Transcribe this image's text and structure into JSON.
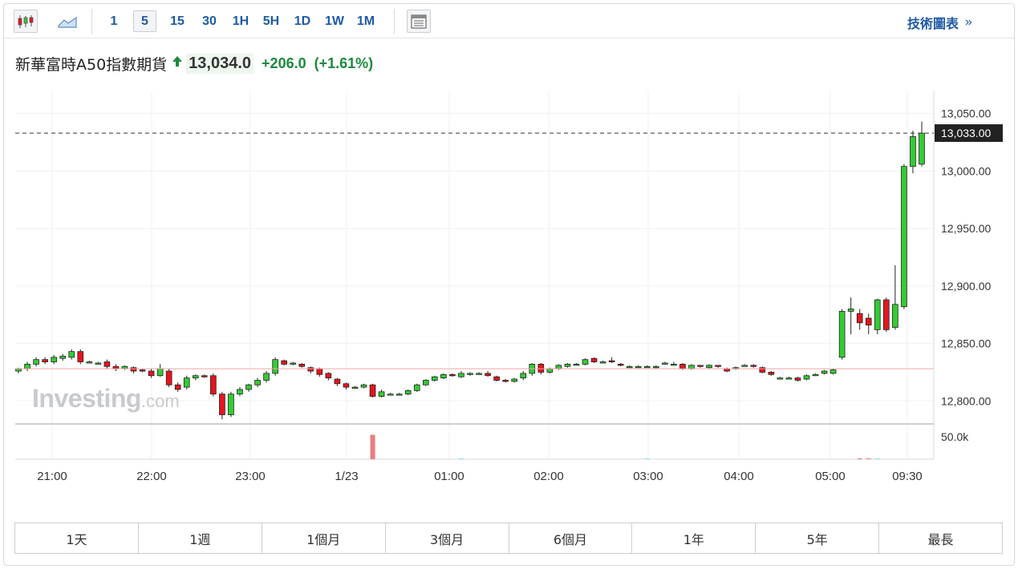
{
  "toolbar": {
    "chart_type_icons": [
      "candlestick-icon",
      "area-chart-icon"
    ],
    "intervals": [
      "1",
      "5",
      "15",
      "30",
      "1H",
      "5H",
      "1D",
      "1W",
      "1M"
    ],
    "active_interval": "5",
    "technical_link": "技術圖表",
    "technical_chevron": "»"
  },
  "instrument": {
    "name": "新華富時A50指數期貨",
    "price": "13,034.0",
    "change": "+206.0",
    "change_pct": "(+1.61%)",
    "direction": "up"
  },
  "watermark": {
    "brand": "Investing",
    "suffix": ".com"
  },
  "colors": {
    "up": "#33cc33",
    "down": "#e6141e",
    "accent_text": "#1f5aa5",
    "positive_text": "#1c8a3c",
    "prev_close_line": "#f3a4a4",
    "last_price_tag": "#222222"
  },
  "periods": [
    "1天",
    "1週",
    "1個月",
    "3個月",
    "6個月",
    "1年",
    "5年",
    "最長"
  ],
  "chart_data": {
    "type": "candlestick",
    "title": "",
    "y_ticks": [
      "13,050.00",
      "13,000.00",
      "12,950.00",
      "12,900.00",
      "12,850.00",
      "12,800.00"
    ],
    "y_tick_values": [
      13050,
      13000,
      12950,
      12900,
      12850,
      12800
    ],
    "ylim": [
      12780,
      13070
    ],
    "x_ticks": [
      "21:00",
      "22:00",
      "23:00",
      "1/23",
      "01:00",
      "02:00",
      "03:00",
      "04:00",
      "05:00",
      "09:30"
    ],
    "last_price_label": "13,033.00",
    "last_price": 13033,
    "previous_close": 12828,
    "volume_tick": "50.0k",
    "volume_ylim": [
      0,
      80000
    ],
    "grid": true,
    "candles": [
      [
        12826,
        12828,
        12824,
        12829
      ],
      [
        12828,
        12832,
        12826,
        12834
      ],
      [
        12832,
        12836,
        12830,
        12838
      ],
      [
        12836,
        12834,
        12832,
        12838
      ],
      [
        12834,
        12838,
        12832,
        12840
      ],
      [
        12837,
        12839,
        12835,
        12841
      ],
      [
        12838,
        12843,
        12836,
        12845
      ],
      [
        12843,
        12834,
        12832,
        12845
      ],
      [
        12834,
        12834,
        12833,
        12835
      ],
      [
        12833,
        12833,
        12832,
        12834
      ],
      [
        12834,
        12830,
        12828,
        12836
      ],
      [
        12830,
        12828,
        12826,
        12832
      ],
      [
        12828,
        12830,
        12827,
        12831
      ],
      [
        12829,
        12826,
        12824,
        12830
      ],
      [
        12827,
        12826,
        12825,
        12828
      ],
      [
        12826,
        12822,
        12820,
        12828
      ],
      [
        12822,
        12828,
        12821,
        12832
      ],
      [
        12826,
        12814,
        12812,
        12828
      ],
      [
        12814,
        12810,
        12808,
        12816
      ],
      [
        12812,
        12820,
        12810,
        12822
      ],
      [
        12820,
        12822,
        12818,
        12823
      ],
      [
        12822,
        12821,
        12820,
        12823
      ],
      [
        12822,
        12806,
        12804,
        12824
      ],
      [
        12806,
        12788,
        12784,
        12808
      ],
      [
        12788,
        12806,
        12786,
        12808
      ],
      [
        12806,
        12810,
        12804,
        12812
      ],
      [
        12810,
        12814,
        12808,
        12815
      ],
      [
        12814,
        12818,
        12812,
        12820
      ],
      [
        12818,
        12824,
        12816,
        12826
      ],
      [
        12824,
        12836,
        12822,
        12838
      ],
      [
        12835,
        12832,
        12831,
        12836
      ],
      [
        12832,
        12833,
        12831,
        12834
      ],
      [
        12832,
        12830,
        12829,
        12833
      ],
      [
        12829,
        12826,
        12824,
        12830
      ],
      [
        12828,
        12823,
        12821,
        12829
      ],
      [
        12824,
        12820,
        12818,
        12825
      ],
      [
        12819,
        12815,
        12813,
        12820
      ],
      [
        12815,
        12812,
        12810,
        12816
      ],
      [
        12812,
        12812,
        12811,
        12813
      ],
      [
        12812,
        12814,
        12811,
        12815
      ],
      [
        12814,
        12804,
        12803,
        12815
      ],
      [
        12804,
        12808,
        12803,
        12810
      ],
      [
        12806,
        12806,
        12805,
        12807
      ],
      [
        12806,
        12806,
        12805,
        12807
      ],
      [
        12806,
        12809,
        12805,
        12810
      ],
      [
        12809,
        12814,
        12808,
        12815
      ],
      [
        12814,
        12818,
        12813,
        12819
      ],
      [
        12818,
        12821,
        12817,
        12822
      ],
      [
        12820,
        12823,
        12819,
        12824
      ],
      [
        12823,
        12822,
        12821,
        12824
      ],
      [
        12821,
        12824,
        12820,
        12826
      ],
      [
        12823,
        12824,
        12822,
        12825
      ],
      [
        12824,
        12824,
        12823,
        12825
      ],
      [
        12824,
        12822,
        12821,
        12826
      ],
      [
        12821,
        12818,
        12817,
        12822
      ],
      [
        12818,
        12817,
        12816,
        12819
      ],
      [
        12817,
        12819,
        12816,
        12820
      ],
      [
        12820,
        12824,
        12818,
        12826
      ],
      [
        12824,
        12832,
        12822,
        12833
      ],
      [
        12832,
        12825,
        12823,
        12833
      ],
      [
        12825,
        12828,
        12824,
        12829
      ],
      [
        12828,
        12831,
        12827,
        12832
      ],
      [
        12830,
        12832,
        12829,
        12833
      ],
      [
        12832,
        12832,
        12831,
        12833
      ],
      [
        12832,
        12836,
        12831,
        12837
      ],
      [
        12837,
        12834,
        12833,
        12838
      ],
      [
        12834,
        12834,
        12833,
        12835
      ],
      [
        12835,
        12834,
        12833,
        12838
      ],
      [
        12832,
        12831,
        12830,
        12833
      ],
      [
        12830,
        12830,
        12829,
        12831
      ],
      [
        12830,
        12830,
        12829,
        12831
      ],
      [
        12830,
        12830,
        12829,
        12831
      ],
      [
        12829,
        12830,
        12828,
        12831
      ],
      [
        12833,
        12833,
        12832,
        12834
      ],
      [
        12832,
        12832,
        12831,
        12834
      ],
      [
        12832,
        12828,
        12827,
        12833
      ],
      [
        12828,
        12831,
        12827,
        12832
      ],
      [
        12831,
        12830,
        12829,
        12831
      ],
      [
        12829,
        12831,
        12828,
        12832
      ],
      [
        12831,
        12830,
        12829,
        12831
      ],
      [
        12828,
        12826,
        12825,
        12829
      ],
      [
        12828,
        12829,
        12827,
        12830
      ],
      [
        12831,
        12831,
        12830,
        12832
      ],
      [
        12831,
        12830,
        12829,
        12832
      ],
      [
        12829,
        12825,
        12824,
        12830
      ],
      [
        12825,
        12823,
        12822,
        12826
      ],
      [
        12820,
        12820,
        12819,
        12821
      ],
      [
        12820,
        12820,
        12819,
        12821
      ],
      [
        12820,
        12818,
        12817,
        12821
      ],
      [
        12819,
        12822,
        12818,
        12823
      ],
      [
        12823,
        12823,
        12822,
        12824
      ],
      [
        12824,
        12826,
        12823,
        12827
      ],
      [
        12824,
        12827,
        12823,
        12828
      ],
      [
        12838,
        12878,
        12836,
        12880
      ],
      [
        12878,
        12880,
        12858,
        12890
      ],
      [
        12876,
        12868,
        12862,
        12880
      ],
      [
        12872,
        12866,
        12858,
        12876
      ],
      [
        12862,
        12888,
        12858,
        12889
      ],
      [
        12888,
        12862,
        12860,
        12890
      ],
      [
        12864,
        12884,
        12862,
        12918
      ],
      [
        12882,
        13004,
        12880,
        13006
      ],
      [
        13004,
        13030,
        12998,
        13035
      ],
      [
        13006,
        13033,
        13004,
        13043
      ]
    ],
    "volumes": [
      0,
      0,
      0,
      0,
      0,
      0,
      0,
      0,
      0,
      0,
      0,
      0,
      0,
      0,
      0,
      0,
      0,
      0,
      0,
      0,
      0,
      0,
      0,
      0,
      0,
      0,
      0,
      0,
      0,
      0,
      0,
      0,
      0,
      0,
      0,
      0,
      0,
      0,
      0,
      0,
      58000,
      0,
      0,
      0,
      0,
      0,
      0,
      0,
      0,
      0,
      2000,
      0,
      0,
      0,
      0,
      0,
      0,
      0,
      0,
      0,
      0,
      0,
      0,
      0,
      0,
      0,
      0,
      0,
      0,
      0,
      0,
      2000,
      0,
      0,
      0,
      0,
      0,
      0,
      0,
      0,
      0,
      0,
      0,
      0,
      0,
      0,
      0,
      0,
      0,
      0,
      0,
      0,
      0,
      0,
      0,
      2000,
      2000,
      2000,
      0,
      0,
      0,
      0,
      0,
      0,
      0
    ]
  }
}
